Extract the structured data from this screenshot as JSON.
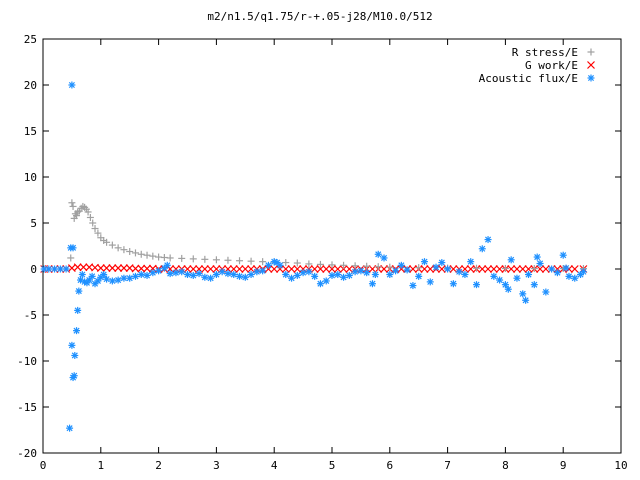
{
  "chart_data": {
    "type": "scatter",
    "title": "m2/n1.5/q1.75/r-+.05-j28/M10.0/512",
    "xlim": [
      0,
      10
    ],
    "ylim": [
      -20,
      25
    ],
    "x_ticks": [
      "0",
      "1",
      "2",
      "3",
      "4",
      "5",
      "6",
      "7",
      "8",
      "9",
      "10"
    ],
    "y_ticks": [
      "25",
      "20",
      "15",
      "10",
      "5",
      "0",
      "-5",
      "-10",
      "-15",
      "-20"
    ],
    "grid": false,
    "legend_position": "top-right",
    "series": [
      {
        "name": "R stress/E",
        "marker": "plus",
        "color": "#a0a0a0",
        "x": [
          0.48,
          0.5,
          0.52,
          0.54,
          0.56,
          0.58,
          0.6,
          0.63,
          0.66,
          0.69,
          0.72,
          0.75,
          0.78,
          0.82,
          0.86,
          0.9,
          0.95,
          1.0,
          1.05,
          1.1,
          1.2,
          1.3,
          1.4,
          1.5,
          1.6,
          1.7,
          1.8,
          1.9,
          2.0,
          2.1,
          2.2,
          2.4,
          2.6,
          2.8,
          3.0,
          3.2,
          3.4,
          3.6,
          3.8,
          4.0,
          4.2,
          4.4,
          4.6,
          4.8,
          5.0,
          5.2,
          5.4,
          5.6,
          5.8,
          6.0,
          6.5,
          7.0,
          7.5,
          8.0,
          8.5,
          9.0,
          9.35
        ],
        "y": [
          1.2,
          7.2,
          6.8,
          5.5,
          6.0,
          5.8,
          6.2,
          6.3,
          6.6,
          6.8,
          6.7,
          6.5,
          6.2,
          5.6,
          5.0,
          4.4,
          3.9,
          3.4,
          3.1,
          2.9,
          2.6,
          2.3,
          2.1,
          1.9,
          1.75,
          1.6,
          1.5,
          1.4,
          1.3,
          1.25,
          1.2,
          1.15,
          1.1,
          1.05,
          1.0,
          0.95,
          0.9,
          0.85,
          0.8,
          0.75,
          0.7,
          0.65,
          0.55,
          0.5,
          0.45,
          0.4,
          0.35,
          0.3,
          0.25,
          0.2,
          0.15,
          0.1,
          0.08,
          0.06,
          0.05,
          0.05,
          0.05
        ]
      },
      {
        "name": "G work/E",
        "marker": "cross",
        "color": "#ff0000",
        "x": [
          0.02,
          0.1,
          0.2,
          0.3,
          0.4,
          0.5,
          0.6,
          0.7,
          0.8,
          0.9,
          1.0,
          1.1,
          1.2,
          1.3,
          1.4,
          1.5,
          1.6,
          1.7,
          1.8,
          1.9,
          2.0,
          2.1,
          2.2,
          2.3,
          2.4,
          2.5,
          2.6,
          2.7,
          2.8,
          2.9,
          3.0,
          3.1,
          3.2,
          3.3,
          3.4,
          3.5,
          3.6,
          3.7,
          3.8,
          3.9,
          4.0,
          4.1,
          4.2,
          4.3,
          4.4,
          4.5,
          4.6,
          4.7,
          4.8,
          4.9,
          5.0,
          5.1,
          5.2,
          5.3,
          5.4,
          5.5,
          5.6,
          5.7,
          5.8,
          5.9,
          6.0,
          6.1,
          6.2,
          6.3,
          6.4,
          6.5,
          6.6,
          6.7,
          6.8,
          6.9,
          7.0,
          7.1,
          7.2,
          7.3,
          7.4,
          7.5,
          7.6,
          7.7,
          7.8,
          7.9,
          8.0,
          8.1,
          8.2,
          8.3,
          8.4,
          8.5,
          8.6,
          8.7,
          8.8,
          8.9,
          9.0,
          9.1,
          9.2,
          9.35
        ],
        "y": [
          0,
          0,
          0,
          0,
          0,
          0.1,
          0.2,
          0.2,
          0.2,
          0.15,
          0.1,
          0.1,
          0.1,
          0.1,
          0.1,
          0.1,
          0.05,
          0.05,
          0.05,
          0.05,
          0,
          0,
          0,
          0,
          0,
          0,
          0,
          0,
          0,
          0,
          0,
          0,
          0,
          0,
          0,
          0,
          0,
          0,
          0,
          0,
          0,
          0,
          0,
          0,
          0,
          0,
          0,
          0,
          0,
          0,
          0,
          0,
          0,
          0,
          0,
          0,
          0,
          0,
          0,
          0,
          0,
          0,
          0,
          0,
          0,
          0,
          0,
          0,
          0,
          0,
          0,
          0,
          0,
          0,
          0,
          0,
          0,
          0,
          0,
          0,
          0,
          0,
          0,
          0,
          0,
          0,
          0,
          0,
          0,
          0,
          0,
          0,
          0,
          0
        ]
      },
      {
        "name": "Acoustic flux/E",
        "marker": "star",
        "color": "#1e90ff",
        "x": [
          0.02,
          0.1,
          0.2,
          0.3,
          0.4,
          0.46,
          0.48,
          0.5,
          0.5,
          0.52,
          0.52,
          0.54,
          0.55,
          0.58,
          0.6,
          0.62,
          0.65,
          0.68,
          0.72,
          0.76,
          0.8,
          0.85,
          0.9,
          0.95,
          1.0,
          1.05,
          1.1,
          1.2,
          1.3,
          1.4,
          1.5,
          1.6,
          1.7,
          1.8,
          1.9,
          2.0,
          2.1,
          2.15,
          2.2,
          2.3,
          2.4,
          2.5,
          2.6,
          2.7,
          2.8,
          2.9,
          3.0,
          3.1,
          3.2,
          3.3,
          3.4,
          3.5,
          3.6,
          3.7,
          3.8,
          3.9,
          4.0,
          4.05,
          4.1,
          4.2,
          4.3,
          4.4,
          4.5,
          4.6,
          4.7,
          4.8,
          4.9,
          5.0,
          5.1,
          5.2,
          5.3,
          5.4,
          5.5,
          5.6,
          5.7,
          5.75,
          5.8,
          5.9,
          6.0,
          6.1,
          6.2,
          6.3,
          6.4,
          6.5,
          6.6,
          6.7,
          6.8,
          6.9,
          7.0,
          7.1,
          7.2,
          7.3,
          7.4,
          7.5,
          7.6,
          7.7,
          7.8,
          7.9,
          8.0,
          8.05,
          8.1,
          8.2,
          8.3,
          8.35,
          8.4,
          8.5,
          8.55,
          8.6,
          8.7,
          8.8,
          8.9,
          9.0,
          9.05,
          9.1,
          9.2,
          9.3,
          9.35
        ],
        "y": [
          0,
          0,
          0,
          0,
          0,
          -17.3,
          2.3,
          20.0,
          -8.3,
          2.3,
          -11.8,
          -11.6,
          -9.4,
          -6.7,
          -4.5,
          -2.4,
          -1.2,
          -0.6,
          -1.4,
          -1.5,
          -1.2,
          -0.8,
          -1.6,
          -1.3,
          -0.9,
          -0.6,
          -1.1,
          -1.3,
          -1.2,
          -1.0,
          -1.0,
          -0.8,
          -0.6,
          -0.7,
          -0.4,
          -0.2,
          0.1,
          0.4,
          -0.5,
          -0.4,
          -0.3,
          -0.6,
          -0.7,
          -0.5,
          -0.9,
          -1.0,
          -0.6,
          -0.3,
          -0.5,
          -0.6,
          -0.8,
          -0.9,
          -0.6,
          -0.3,
          -0.2,
          0.4,
          0.8,
          0.7,
          0.4,
          -0.6,
          -1.0,
          -0.7,
          -0.4,
          -0.3,
          -0.8,
          -1.6,
          -1.3,
          -0.7,
          -0.6,
          -0.9,
          -0.7,
          -0.3,
          -0.2,
          -0.4,
          -1.6,
          -0.6,
          1.6,
          1.2,
          -0.6,
          -0.2,
          0.4,
          -0.1,
          -1.8,
          -0.8,
          0.8,
          -1.4,
          0.2,
          0.7,
          0.0,
          -1.6,
          -0.3,
          -0.6,
          0.8,
          -1.7,
          2.2,
          3.2,
          -0.8,
          -1.2,
          -1.7,
          -2.2,
          1.0,
          -1.0,
          -2.7,
          -3.4,
          -0.6,
          -1.7,
          1.3,
          0.6,
          -2.5,
          0.0,
          -0.4,
          1.5,
          0.1,
          -0.8,
          -1.0,
          -0.6,
          -0.3
        ]
      }
    ]
  }
}
